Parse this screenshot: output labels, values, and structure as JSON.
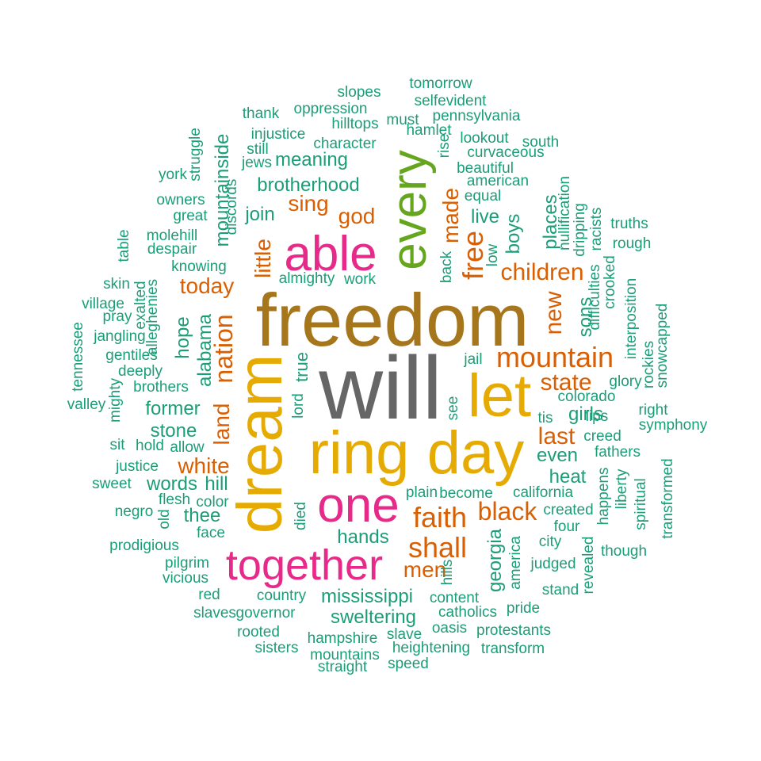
{
  "colors": {
    "teal": "#1b9e77",
    "orange": "#d95f02",
    "pink": "#e7298a",
    "green": "#66a61e",
    "gold": "#e6ab02",
    "brown": "#a6761d",
    "gray": "#666666"
  },
  "words": [
    {
      "text": "will",
      "freq": 27,
      "color": "gray"
    },
    {
      "text": "freedom",
      "freq": 20,
      "color": "brown"
    },
    {
      "text": "ring",
      "freq": 12,
      "color": "gold"
    },
    {
      "text": "day",
      "freq": 11,
      "color": "gold"
    },
    {
      "text": "dream",
      "freq": 11,
      "color": "gold"
    },
    {
      "text": "let",
      "freq": 10,
      "color": "gold"
    },
    {
      "text": "every",
      "freq": 9,
      "color": "green"
    },
    {
      "text": "able",
      "freq": 8,
      "color": "pink"
    },
    {
      "text": "one",
      "freq": 8,
      "color": "pink"
    },
    {
      "text": "together",
      "freq": 7,
      "color": "pink"
    },
    {
      "text": "mountain",
      "freq": 6,
      "color": "orange"
    },
    {
      "text": "faith",
      "freq": 5,
      "color": "orange"
    },
    {
      "text": "shall",
      "freq": 5,
      "color": "orange"
    },
    {
      "text": "black",
      "freq": 5,
      "color": "orange"
    },
    {
      "text": "free",
      "freq": 5,
      "color": "orange"
    },
    {
      "text": "state",
      "freq": 4,
      "color": "orange"
    },
    {
      "text": "white",
      "freq": 4,
      "color": "orange"
    },
    {
      "text": "nation",
      "freq": 4,
      "color": "orange"
    },
    {
      "text": "land",
      "freq": 4,
      "color": "orange"
    },
    {
      "text": "new",
      "freq": 4,
      "color": "orange"
    },
    {
      "text": "last",
      "freq": 4,
      "color": "orange"
    },
    {
      "text": "men",
      "freq": 4,
      "color": "orange"
    },
    {
      "text": "children",
      "freq": 4,
      "color": "orange"
    },
    {
      "text": "today",
      "freq": 4,
      "color": "orange"
    },
    {
      "text": "sing",
      "freq": 4,
      "color": "orange"
    },
    {
      "text": "god",
      "freq": 4,
      "color": "orange"
    },
    {
      "text": "made",
      "freq": 4,
      "color": "orange"
    },
    {
      "text": "little",
      "freq": 4,
      "color": "orange"
    },
    {
      "text": "mississippi",
      "freq": 3,
      "color": "teal"
    },
    {
      "text": "sweltering",
      "freq": 3,
      "color": "teal"
    },
    {
      "text": "hands",
      "freq": 3,
      "color": "teal"
    },
    {
      "text": "georgia",
      "freq": 3,
      "color": "teal"
    },
    {
      "text": "heat",
      "freq": 3,
      "color": "teal"
    },
    {
      "text": "even",
      "freq": 3,
      "color": "teal"
    },
    {
      "text": "girls",
      "freq": 3,
      "color": "teal"
    },
    {
      "text": "sons",
      "freq": 3,
      "color": "teal"
    },
    {
      "text": "places",
      "freq": 3,
      "color": "teal"
    },
    {
      "text": "boys",
      "freq": 3,
      "color": "teal"
    },
    {
      "text": "live",
      "freq": 3,
      "color": "teal"
    },
    {
      "text": "brotherhood",
      "freq": 3,
      "color": "teal"
    },
    {
      "text": "meaning",
      "freq": 3,
      "color": "teal"
    },
    {
      "text": "join",
      "freq": 3,
      "color": "teal"
    },
    {
      "text": "mountainside",
      "freq": 3,
      "color": "teal"
    },
    {
      "text": "hope",
      "freq": 3,
      "color": "teal"
    },
    {
      "text": "alabama",
      "freq": 3,
      "color": "teal"
    },
    {
      "text": "former",
      "freq": 3,
      "color": "teal"
    },
    {
      "text": "stone",
      "freq": 3,
      "color": "teal"
    },
    {
      "text": "words",
      "freq": 3,
      "color": "teal"
    },
    {
      "text": "hill",
      "freq": 3,
      "color": "teal"
    },
    {
      "text": "thee",
      "freq": 3,
      "color": "teal"
    },
    {
      "text": "true",
      "freq": 3,
      "color": "teal"
    },
    {
      "text": "tomorrow",
      "freq": 2,
      "color": "teal"
    },
    {
      "text": "slopes",
      "freq": 2,
      "color": "teal"
    },
    {
      "text": "selfevident",
      "freq": 2,
      "color": "teal"
    },
    {
      "text": "oppression",
      "freq": 2,
      "color": "teal"
    },
    {
      "text": "thank",
      "freq": 2,
      "color": "teal"
    },
    {
      "text": "pennsylvania",
      "freq": 2,
      "color": "teal"
    },
    {
      "text": "must",
      "freq": 2,
      "color": "teal"
    },
    {
      "text": "hilltops",
      "freq": 2,
      "color": "teal"
    },
    {
      "text": "injustice",
      "freq": 2,
      "color": "teal"
    },
    {
      "text": "hamlet",
      "freq": 2,
      "color": "teal"
    },
    {
      "text": "character",
      "freq": 2,
      "color": "teal"
    },
    {
      "text": "lookout",
      "freq": 2,
      "color": "teal"
    },
    {
      "text": "south",
      "freq": 2,
      "color": "teal"
    },
    {
      "text": "still",
      "freq": 2,
      "color": "teal"
    },
    {
      "text": "curvaceous",
      "freq": 2,
      "color": "teal"
    },
    {
      "text": "jews",
      "freq": 2,
      "color": "teal"
    },
    {
      "text": "beautiful",
      "freq": 2,
      "color": "teal"
    },
    {
      "text": "struggle",
      "freq": 2,
      "color": "teal"
    },
    {
      "text": "york",
      "freq": 2,
      "color": "teal"
    },
    {
      "text": "rise",
      "freq": 2,
      "color": "teal"
    },
    {
      "text": "american",
      "freq": 2,
      "color": "teal"
    },
    {
      "text": "equal",
      "freq": 2,
      "color": "teal"
    },
    {
      "text": "owners",
      "freq": 2,
      "color": "teal"
    },
    {
      "text": "discords",
      "freq": 2,
      "color": "teal"
    },
    {
      "text": "great",
      "freq": 2,
      "color": "teal"
    },
    {
      "text": "nullification",
      "freq": 2,
      "color": "teal"
    },
    {
      "text": "truths",
      "freq": 2,
      "color": "teal"
    },
    {
      "text": "molehill",
      "freq": 2,
      "color": "teal"
    },
    {
      "text": "table",
      "freq": 2,
      "color": "teal"
    },
    {
      "text": "despair",
      "freq": 2,
      "color": "teal"
    },
    {
      "text": "dripping",
      "freq": 2,
      "color": "teal"
    },
    {
      "text": "racists",
      "freq": 2,
      "color": "teal"
    },
    {
      "text": "rough",
      "freq": 2,
      "color": "teal"
    },
    {
      "text": "low",
      "freq": 2,
      "color": "teal"
    },
    {
      "text": "knowing",
      "freq": 2,
      "color": "teal"
    },
    {
      "text": "back",
      "freq": 2,
      "color": "teal"
    },
    {
      "text": "almighty",
      "freq": 2,
      "color": "teal"
    },
    {
      "text": "work",
      "freq": 2,
      "color": "teal"
    },
    {
      "text": "difficulties",
      "freq": 2,
      "color": "teal"
    },
    {
      "text": "crooked",
      "freq": 2,
      "color": "teal"
    },
    {
      "text": "skin",
      "freq": 2,
      "color": "teal"
    },
    {
      "text": "exalted",
      "freq": 2,
      "color": "teal"
    },
    {
      "text": "alleghenies",
      "freq": 2,
      "color": "teal"
    },
    {
      "text": "village",
      "freq": 2,
      "color": "teal"
    },
    {
      "text": "interposition",
      "freq": 2,
      "color": "teal"
    },
    {
      "text": "pray",
      "freq": 2,
      "color": "teal"
    },
    {
      "text": "snowcapped",
      "freq": 2,
      "color": "teal"
    },
    {
      "text": "tennessee",
      "freq": 2,
      "color": "teal"
    },
    {
      "text": "jangling",
      "freq": 2,
      "color": "teal"
    },
    {
      "text": "gentiles",
      "freq": 2,
      "color": "teal"
    },
    {
      "text": "jail",
      "freq": 2,
      "color": "teal"
    },
    {
      "text": "rockies",
      "freq": 2,
      "color": "teal"
    },
    {
      "text": "deeply",
      "freq": 2,
      "color": "teal"
    },
    {
      "text": "glory",
      "freq": 2,
      "color": "teal"
    },
    {
      "text": "brothers",
      "freq": 2,
      "color": "teal"
    },
    {
      "text": "colorado",
      "freq": 2,
      "color": "teal"
    },
    {
      "text": "mighty",
      "freq": 2,
      "color": "teal"
    },
    {
      "text": "lord",
      "freq": 2,
      "color": "teal"
    },
    {
      "text": "valley",
      "freq": 2,
      "color": "teal"
    },
    {
      "text": "see",
      "freq": 2,
      "color": "teal"
    },
    {
      "text": "tis",
      "freq": 2,
      "color": "teal"
    },
    {
      "text": "lips",
      "freq": 2,
      "color": "teal"
    },
    {
      "text": "right",
      "freq": 2,
      "color": "teal"
    },
    {
      "text": "symphony",
      "freq": 2,
      "color": "teal"
    },
    {
      "text": "creed",
      "freq": 2,
      "color": "teal"
    },
    {
      "text": "sit",
      "freq": 2,
      "color": "teal"
    },
    {
      "text": "hold",
      "freq": 2,
      "color": "teal"
    },
    {
      "text": "allow",
      "freq": 2,
      "color": "teal"
    },
    {
      "text": "fathers",
      "freq": 2,
      "color": "teal"
    },
    {
      "text": "justice",
      "freq": 2,
      "color": "teal"
    },
    {
      "text": "transformed",
      "freq": 2,
      "color": "teal"
    },
    {
      "text": "happens",
      "freq": 2,
      "color": "teal"
    },
    {
      "text": "liberty",
      "freq": 2,
      "color": "teal"
    },
    {
      "text": "sweet",
      "freq": 2,
      "color": "teal"
    },
    {
      "text": "plain",
      "freq": 2,
      "color": "teal"
    },
    {
      "text": "become",
      "freq": 2,
      "color": "teal"
    },
    {
      "text": "california",
      "freq": 2,
      "color": "teal"
    },
    {
      "text": "spiritual",
      "freq": 2,
      "color": "teal"
    },
    {
      "text": "flesh",
      "freq": 2,
      "color": "teal"
    },
    {
      "text": "color",
      "freq": 2,
      "color": "teal"
    },
    {
      "text": "created",
      "freq": 2,
      "color": "teal"
    },
    {
      "text": "negro",
      "freq": 2,
      "color": "teal"
    },
    {
      "text": "old",
      "freq": 2,
      "color": "teal"
    },
    {
      "text": "died",
      "freq": 2,
      "color": "teal"
    },
    {
      "text": "four",
      "freq": 2,
      "color": "teal"
    },
    {
      "text": "face",
      "freq": 2,
      "color": "teal"
    },
    {
      "text": "city",
      "freq": 2,
      "color": "teal"
    },
    {
      "text": "america",
      "freq": 2,
      "color": "teal"
    },
    {
      "text": "prodigious",
      "freq": 2,
      "color": "teal"
    },
    {
      "text": "though",
      "freq": 2,
      "color": "teal"
    },
    {
      "text": "revealed",
      "freq": 2,
      "color": "teal"
    },
    {
      "text": "judged",
      "freq": 2,
      "color": "teal"
    },
    {
      "text": "pilgrim",
      "freq": 2,
      "color": "teal"
    },
    {
      "text": "hills",
      "freq": 2,
      "color": "teal"
    },
    {
      "text": "vicious",
      "freq": 2,
      "color": "teal"
    },
    {
      "text": "stand",
      "freq": 2,
      "color": "teal"
    },
    {
      "text": "red",
      "freq": 2,
      "color": "teal"
    },
    {
      "text": "country",
      "freq": 2,
      "color": "teal"
    },
    {
      "text": "content",
      "freq": 2,
      "color": "teal"
    },
    {
      "text": "pride",
      "freq": 2,
      "color": "teal"
    },
    {
      "text": "slaves",
      "freq": 2,
      "color": "teal"
    },
    {
      "text": "governor",
      "freq": 2,
      "color": "teal"
    },
    {
      "text": "catholics",
      "freq": 2,
      "color": "teal"
    },
    {
      "text": "oasis",
      "freq": 2,
      "color": "teal"
    },
    {
      "text": "rooted",
      "freq": 2,
      "color": "teal"
    },
    {
      "text": "hampshire",
      "freq": 2,
      "color": "teal"
    },
    {
      "text": "slave",
      "freq": 2,
      "color": "teal"
    },
    {
      "text": "protestants",
      "freq": 2,
      "color": "teal"
    },
    {
      "text": "sisters",
      "freq": 2,
      "color": "teal"
    },
    {
      "text": "heightening",
      "freq": 2,
      "color": "teal"
    },
    {
      "text": "transform",
      "freq": 2,
      "color": "teal"
    },
    {
      "text": "mountains",
      "freq": 2,
      "color": "teal"
    },
    {
      "text": "straight",
      "freq": 2,
      "color": "teal"
    },
    {
      "text": "speed",
      "freq": 2,
      "color": "teal"
    }
  ]
}
